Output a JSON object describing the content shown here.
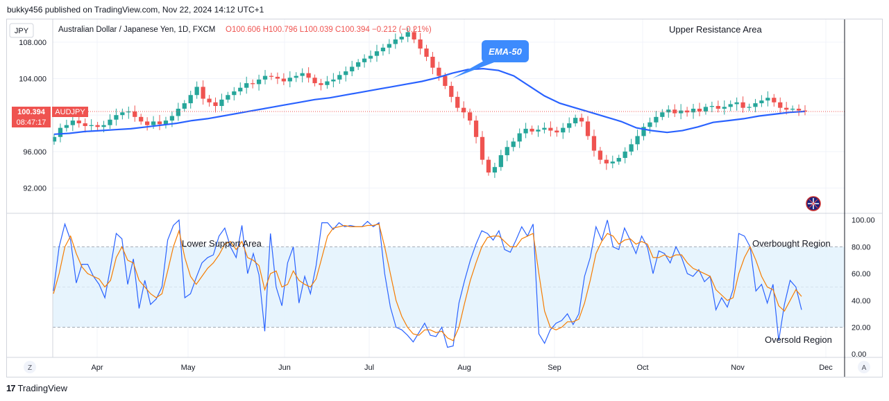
{
  "header": {
    "published": "bukky456 published on TradingView.com, Nov 22, 2024 14:12 UTC+1"
  },
  "footer": {
    "brand": "TradingView",
    "logo_mark": "17"
  },
  "toolbar": {
    "currency_label": "JPY",
    "z_label": "Z",
    "a_label": "A"
  },
  "legend": {
    "symbol": "Australian Dollar / Japanese Yen, 1D, FXCM",
    "ohlc": "O100.606 H100.796 L100.039 C100.394 −0.212 (−0.21%)"
  },
  "price_badge": {
    "price": "100.394",
    "ticker": "AUDJPY",
    "countdown": "08:47:17"
  },
  "annotations": {
    "ema_callout": "EMA-50",
    "upper_resistance": "Upper Resistance Area",
    "lower_support": "Lower Support Area",
    "overbought": "Overbought Region",
    "oversold": "Oversold Region"
  },
  "colors": {
    "up": "#26a69a",
    "down": "#ef5350",
    "ema": "#2962ff",
    "k_line": "#2962ff",
    "d_line": "#f57c00",
    "band": "#e3f2fd",
    "callout": "#3d8bfd"
  },
  "chart_data": [
    {
      "type": "candlestick",
      "title": "Australian Dollar / Japanese Yen, 1D, FXCM",
      "ylabel": "JPY",
      "y_ticks": [
        "108.000",
        "104.000",
        "100.000",
        "96.000",
        "92.000"
      ],
      "ylim": [
        89.3,
        110.5
      ],
      "x_ticks": [
        "Apr",
        "May",
        "Jun",
        "Jul",
        "Aug",
        "Sep",
        "Oct",
        "Nov",
        "Dec"
      ],
      "last_close": 100.394,
      "close_series": [
        97.6,
        98.6,
        98.9,
        99.4,
        99.1,
        98.8,
        98.9,
        98.7,
        98.9,
        99.5,
        100.0,
        100.3,
        100.4,
        99.8,
        99.3,
        98.9,
        99.3,
        99.0,
        99.4,
        99.9,
        100.7,
        101.3,
        102.2,
        103.1,
        101.8,
        101.4,
        101.0,
        101.7,
        102.2,
        102.6,
        103.0,
        103.5,
        103.4,
        103.9,
        104.3,
        104.2,
        104.0,
        103.7,
        104.1,
        104.3,
        104.6,
        104.1,
        103.5,
        103.3,
        103.7,
        103.9,
        104.4,
        104.8,
        105.3,
        105.8,
        106.2,
        106.5,
        107.0,
        107.4,
        107.8,
        108.3,
        108.6,
        109.1,
        108.3,
        107.3,
        106.4,
        105.2,
        104.3,
        103.2,
        102.0,
        100.8,
        100.3,
        99.4,
        97.6,
        95.1,
        93.7,
        94.3,
        95.6,
        96.5,
        97.1,
        98.0,
        98.5,
        98.2,
        98.4,
        98.6,
        98.3,
        98.1,
        98.6,
        99.1,
        99.7,
        99.3,
        97.7,
        96.1,
        95.1,
        94.7,
        94.9,
        95.3,
        96.0,
        96.8,
        97.7,
        98.7,
        99.2,
        99.8,
        100.3,
        100.6,
        100.2,
        100.5,
        100.3,
        100.7,
        100.4,
        100.9,
        101.0,
        100.7,
        100.9,
        101.2,
        101.4,
        100.8,
        100.9,
        101.3,
        101.6,
        101.9,
        101.4,
        100.8,
        100.6,
        100.7,
        100.5,
        100.394
      ],
      "series": [
        {
          "name": "EMA-50",
          "values": [
            97.9,
            98.0,
            98.2,
            98.3,
            98.4,
            98.5,
            98.7,
            98.9,
            99.1,
            99.4,
            99.6,
            99.9,
            100.2,
            100.5,
            100.8,
            101.1,
            101.4,
            101.7,
            101.9,
            102.2,
            102.5,
            102.8,
            103.1,
            103.4,
            103.7,
            104.1,
            104.6,
            105.0,
            105.1,
            104.9,
            104.3,
            103.2,
            102.1,
            101.3,
            100.8,
            100.3,
            99.8,
            99.3,
            98.6,
            98.3,
            98.1,
            98.3,
            98.7,
            99.2,
            99.4,
            99.6,
            99.9,
            100.1,
            100.3,
            100.4
          ]
        }
      ]
    },
    {
      "type": "line",
      "title": "",
      "y_ticks": [
        "100.00",
        "80.00",
        "60.00",
        "40.00",
        "20.00",
        "0.00"
      ],
      "ylim": [
        -2,
        104
      ],
      "bands": [
        20,
        80
      ],
      "midline": 50,
      "series": [
        {
          "name": "",
          "values": [
            47,
            80,
            97,
            85,
            53,
            67,
            67,
            58,
            52,
            42,
            65,
            90,
            86,
            52,
            71,
            34,
            55,
            37,
            41,
            50,
            85,
            96,
            100,
            42,
            45,
            57,
            68,
            72,
            74,
            88,
            94,
            80,
            72,
            96,
            60,
            75,
            59,
            17,
            90,
            50,
            36,
            68,
            80,
            38,
            58,
            45,
            66,
            98,
            98,
            93,
            98,
            95,
            96,
            95,
            95,
            99,
            95,
            98,
            60,
            35,
            20,
            18,
            14,
            9,
            16,
            23,
            14,
            13,
            20,
            5,
            6,
            38,
            55,
            70,
            82,
            92,
            90,
            85,
            92,
            78,
            76,
            85,
            95,
            88,
            97,
            15,
            8,
            18,
            23,
            25,
            30,
            22,
            30,
            58,
            72,
            95,
            85,
            100,
            80,
            78,
            94,
            85,
            75,
            88,
            80,
            60,
            77,
            75,
            68,
            80,
            72,
            60,
            58,
            63,
            54,
            58,
            33,
            42,
            35,
            48,
            90,
            88,
            80,
            47,
            52,
            38,
            52,
            10,
            37,
            55,
            50,
            33
          ]
        },
        {
          "name": "",
          "values": [
            45,
            60,
            80,
            88,
            75,
            65,
            60,
            58,
            56,
            50,
            55,
            72,
            80,
            70,
            68,
            55,
            50,
            45,
            42,
            45,
            62,
            80,
            92,
            72,
            58,
            52,
            58,
            64,
            68,
            74,
            82,
            84,
            78,
            84,
            72,
            70,
            66,
            48,
            60,
            62,
            50,
            52,
            62,
            55,
            52,
            50,
            56,
            72,
            88,
            94,
            95,
            96,
            95,
            95,
            95,
            96,
            96,
            97,
            80,
            60,
            40,
            28,
            20,
            15,
            14,
            18,
            18,
            16,
            17,
            12,
            10,
            20,
            38,
            55,
            68,
            80,
            87,
            88,
            88,
            84,
            80,
            80,
            86,
            88,
            90,
            60,
            32,
            20,
            18,
            20,
            24,
            24,
            26,
            38,
            55,
            75,
            84,
            90,
            88,
            82,
            85,
            86,
            82,
            84,
            82,
            72,
            72,
            74,
            72,
            74,
            74,
            68,
            64,
            62,
            60,
            58,
            48,
            44,
            40,
            42,
            60,
            72,
            80,
            70,
            58,
            50,
            48,
            36,
            32,
            40,
            48,
            43
          ]
        }
      ]
    }
  ]
}
